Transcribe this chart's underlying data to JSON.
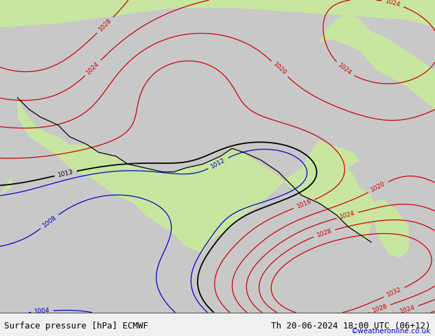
{
  "title_left": "Surface pressure [hPa] ECMWF",
  "title_right": "Th 20-06-2024 18:00 UTC (06+12)",
  "credit": "©weatheronline.co.uk",
  "title_fontsize": 9,
  "credit_color": "#0000cc",
  "fig_width": 6.34,
  "fig_height": 4.9,
  "dpi": 100,
  "land_color": "#c8e6a0",
  "ocean_color": "#c8c8c8",
  "bottom_color": "#f0f0f0"
}
